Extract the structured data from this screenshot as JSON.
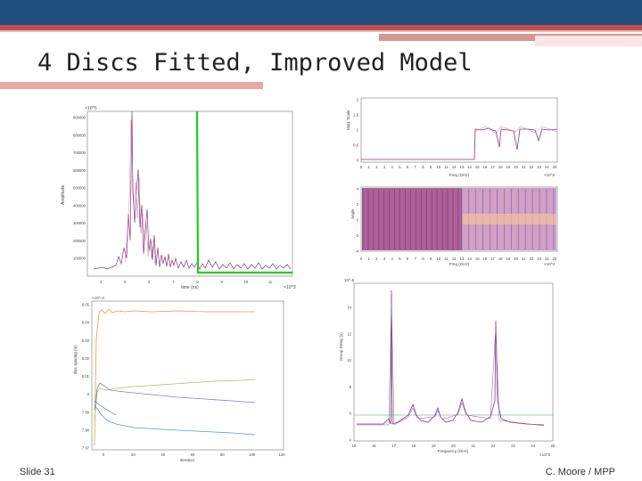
{
  "slide": {
    "title": "4 Discs Fitted, Improved Model",
    "number_label": "Slide 31",
    "author": "C. Moore / MPP"
  },
  "colors": {
    "header_blue": "#1f4d7e",
    "accent_red": "#c0504d",
    "data_purple": "#8a3a7a",
    "fit_green": "#22cc22"
  },
  "panels": {
    "time": {
      "exponent": "×10^5",
      "ylabel": "Amplitude",
      "yticks": [
        "900000",
        "800000",
        "700000",
        "600000",
        "500000",
        "400000",
        "300000",
        "200000",
        "100000"
      ],
      "xlabel": "time (ns)",
      "xticks": [
        "4",
        "5",
        "6",
        "7",
        "8",
        "9",
        "10",
        "11"
      ],
      "xexp": "×10^3"
    },
    "mag": {
      "ylabel": "Mag. Scale",
      "yticks": [
        "2",
        "1.5",
        "1",
        "0.5",
        "0"
      ],
      "xlabel": "Freq (GHz)",
      "xticks": [
        "0",
        "1",
        "2",
        "3",
        "4",
        "5",
        "6",
        "7",
        "8",
        "9",
        "10",
        "11",
        "12",
        "13",
        "14",
        "15",
        "16",
        "17",
        "18",
        "19",
        "20",
        "21",
        "22",
        "23",
        "24",
        "25"
      ],
      "xexp": "×10^2"
    },
    "phase": {
      "ylabel": "Angle",
      "yticks": [
        "4",
        "2",
        "0",
        "-2",
        "-4"
      ],
      "xlabel": "Freq (GHz)",
      "xticks": [
        "0",
        "1",
        "2",
        "3",
        "4",
        "5",
        "6",
        "7",
        "8",
        "9",
        "10",
        "11",
        "12",
        "13",
        "14",
        "15",
        "16",
        "17",
        "18",
        "19",
        "20",
        "21",
        "22",
        "23",
        "24",
        "25"
      ],
      "xexp": "×10^2"
    },
    "iter": {
      "exponent": "×10^-3",
      "ylabel": "disc spacing (m)",
      "yticks": [
        "8.05",
        "8.04",
        "8.03",
        "8.02",
        "8.01",
        "8",
        "7.99",
        "7.98",
        "7.97"
      ],
      "xlabel": "iteration",
      "xticks": [
        "0",
        "20",
        "40",
        "60",
        "80",
        "100",
        "120"
      ]
    },
    "delay": {
      "exponent": "10^-8",
      "ylabel": "Group Delay (s)",
      "yticks": [
        "14",
        "12",
        "10",
        "8",
        "6",
        "4"
      ],
      "xlabel": "Frequency (GHz)",
      "xticks": [
        "15",
        "16",
        "17",
        "18",
        "19",
        "20",
        "21",
        "22",
        "23",
        "24",
        "25"
      ],
      "xexp": "×10^2"
    }
  }
}
